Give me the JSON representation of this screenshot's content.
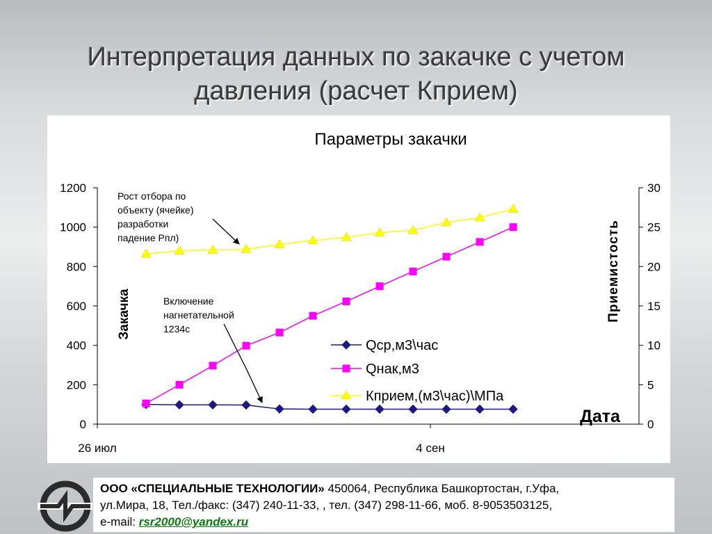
{
  "slide": {
    "title_line1": "Интерпретация данных по закачке с учетом",
    "title_line2": "давления (расчет Кприем)"
  },
  "chart_data": {
    "type": "line",
    "title": "Параметры закачки",
    "xlabel": "Дата",
    "ylabel_left": "Закачка",
    "ylabel_right": "Приемистость",
    "x_tick_labels": [
      "26 июл",
      "4 сен"
    ],
    "ylim_left": [
      0,
      1200
    ],
    "ylim_right": [
      0,
      30
    ],
    "yticks_left": [
      "0",
      "200",
      "400",
      "600",
      "800",
      "1000",
      "1200"
    ],
    "yticks_right": [
      "0",
      "5",
      "10",
      "15",
      "20",
      "25",
      "30"
    ],
    "grid": false,
    "legend_position": "center-right",
    "series": [
      {
        "name": "Qср,м3\\час",
        "axis": "left",
        "color": "#1a1a80",
        "marker": "diamond",
        "values": [
          100,
          98,
          98,
          97,
          77,
          76,
          76,
          76,
          76,
          76,
          76,
          76
        ]
      },
      {
        "name": "Qнак,м3",
        "axis": "left",
        "color": "#ff00ff",
        "marker": "square",
        "values": [
          105,
          200,
          297,
          398,
          465,
          550,
          623,
          700,
          775,
          850,
          925,
          1000
        ]
      },
      {
        "name": "Кприем,(м3\\час)\\МПа",
        "axis": "right",
        "color": "#ffff00",
        "marker": "triangle",
        "values": [
          21.6,
          22.0,
          22.1,
          22.2,
          22.8,
          23.3,
          23.7,
          24.3,
          24.6,
          25.6,
          26.2,
          27.3
        ]
      }
    ],
    "annotations": [
      {
        "id": "annotation-growth",
        "lines": [
          "Рост отбора по",
          "объекту (ячейке)",
          "разработки",
          "падение Рпл)"
        ]
      },
      {
        "id": "annotation-injection",
        "lines": [
          "Включение",
          "нагнетательной",
          "1234с"
        ]
      }
    ]
  },
  "footer": {
    "company": "ООО  «СПЕЦИАЛЬНЫЕ ТЕХНОЛОГИИ»",
    "address_1": " 450064, Республика Башкортостан, г.Уфа,",
    "address_2": "ул.Мира, 18, Тел./факс: (347) 240-11-33, , тел. (347) 298-11-66, моб. 8-9053503125,",
    "email_label": "e-mail: ",
    "email": "rsr2000@yandex.ru"
  },
  "colors": {
    "annotation_arrow": "#000000",
    "axis": "#000000"
  }
}
